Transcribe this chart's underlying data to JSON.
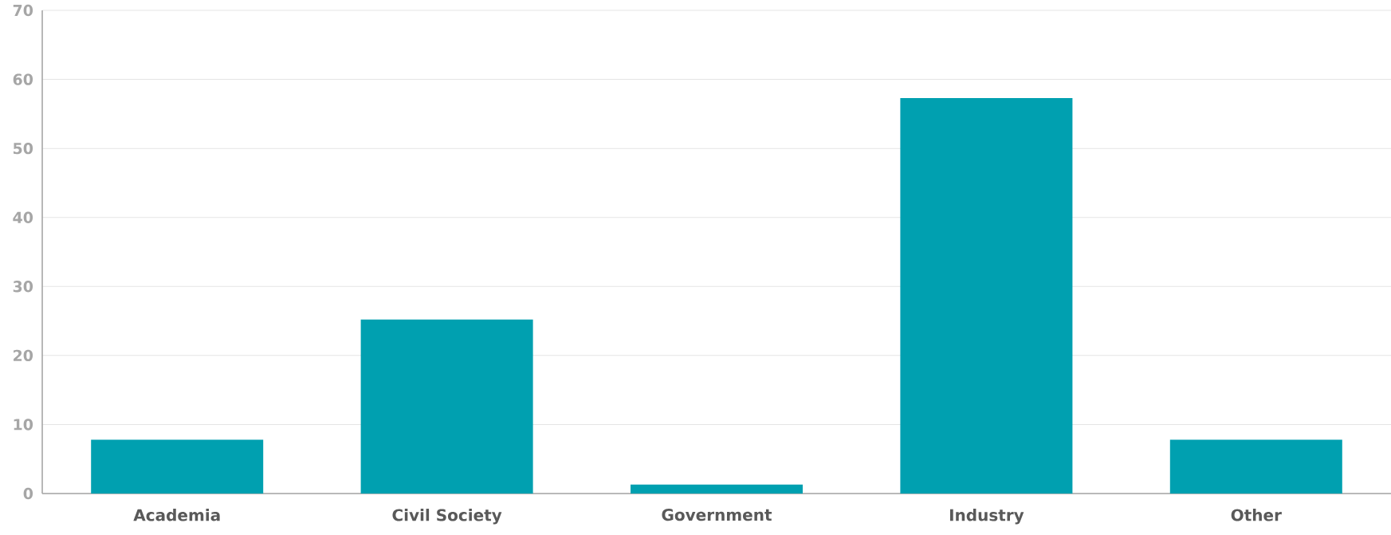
{
  "chart_data": {
    "type": "bar",
    "categories": [
      "Academia",
      "Civil Society",
      "Government",
      "Industry",
      "Other"
    ],
    "values": [
      7.8,
      25.2,
      1.3,
      57.3,
      7.8
    ],
    "color": "#00a0b0",
    "ylim": [
      0,
      70
    ],
    "yticks": [
      0,
      10,
      20,
      30,
      40,
      50,
      60,
      70
    ],
    "grid": "y"
  }
}
